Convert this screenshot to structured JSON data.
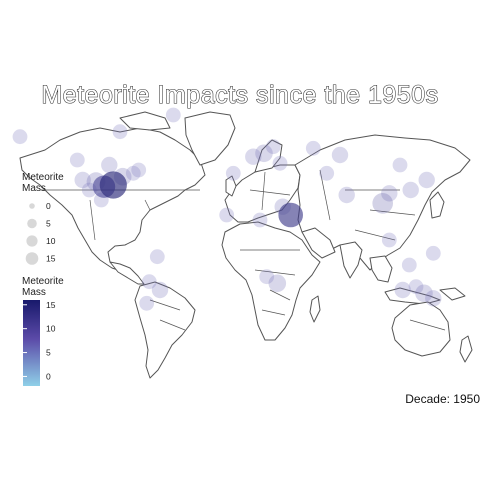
{
  "title": "Meteorite Impacts since the 1950s",
  "caption": "Decade: 1950",
  "colors": {
    "land_fill": "#ffffff",
    "border": "#555555",
    "point_fill": "#8b86c9",
    "point_dark": "#2b2a7a",
    "gradient_high": "#18196b",
    "gradient_mid": "#5b4aa8",
    "gradient_low": "#8fd0e8"
  },
  "size_legend": {
    "title_lines": [
      "Meteorite",
      "Mass"
    ],
    "items": [
      {
        "label": "0",
        "size": 0
      },
      {
        "label": "5",
        "size": 5
      },
      {
        "label": "10",
        "size": 10
      },
      {
        "label": "15",
        "size": 15
      }
    ]
  },
  "color_legend": {
    "title_lines": [
      "Meteorite",
      "Mass"
    ],
    "ticks": [
      {
        "label": "15",
        "value": 15
      },
      {
        "label": "10",
        "value": 10
      },
      {
        "label": "5",
        "value": 5
      },
      {
        "label": "0",
        "value": 0
      }
    ],
    "range": [
      -2,
      16
    ]
  },
  "chart_data": {
    "type": "scatter",
    "title": "Meteorite Impacts since the 1950s",
    "caption": "Decade: 1950",
    "x_label": "",
    "y_label": "",
    "series": [
      {
        "points": [
          {
            "lon": -95,
            "lat": 33,
            "mass": 16
          },
          {
            "lon": -102,
            "lat": 32,
            "mass": 9
          },
          {
            "lon": -108,
            "lat": 35,
            "mass": 5
          },
          {
            "lon": -88,
            "lat": 38,
            "mass": 4
          },
          {
            "lon": -98,
            "lat": 45,
            "mass": 3
          },
          {
            "lon": -118,
            "lat": 36,
            "mass": 3
          },
          {
            "lon": -113,
            "lat": 30,
            "mass": 2
          },
          {
            "lon": -80,
            "lat": 40,
            "mass": 2
          },
          {
            "lon": -122,
            "lat": 48,
            "mass": 2
          },
          {
            "lon": -104,
            "lat": 24,
            "mass": 2
          },
          {
            "lon": -76,
            "lat": 42,
            "mass": 2
          },
          {
            "lon": 38,
            "lat": 15,
            "mass": 12
          },
          {
            "lon": 32,
            "lat": 20,
            "mass": 3
          },
          {
            "lon": 18,
            "lat": 52,
            "mass": 4
          },
          {
            "lon": 10,
            "lat": 50,
            "mass": 3
          },
          {
            "lon": 25,
            "lat": 56,
            "mass": 2
          },
          {
            "lon": 30,
            "lat": 46,
            "mass": 2
          },
          {
            "lon": -5,
            "lat": 40,
            "mass": 2
          },
          {
            "lon": 55,
            "lat": 55,
            "mass": 2
          },
          {
            "lon": 75,
            "lat": 51,
            "mass": 3
          },
          {
            "lon": 65,
            "lat": 40,
            "mass": 2
          },
          {
            "lon": 80,
            "lat": 27,
            "mass": 3
          },
          {
            "lon": 107,
            "lat": 22,
            "mass": 7
          },
          {
            "lon": 112,
            "lat": 28,
            "mass": 3
          },
          {
            "lon": 120,
            "lat": 45,
            "mass": 2
          },
          {
            "lon": 128,
            "lat": 30,
            "mass": 3
          },
          {
            "lon": 140,
            "lat": 36,
            "mass": 3
          },
          {
            "lon": 112,
            "lat": 0,
            "mass": 2
          },
          {
            "lon": 122,
            "lat": -30,
            "mass": 3
          },
          {
            "lon": 132,
            "lat": -28,
            "mass": 2
          },
          {
            "lon": 138,
            "lat": -32,
            "mass": 4
          },
          {
            "lon": 145,
            "lat": -35,
            "mass": 3
          },
          {
            "lon": 127,
            "lat": -15,
            "mass": 2
          },
          {
            "lon": -60,
            "lat": -30,
            "mass": 3
          },
          {
            "lon": -68,
            "lat": -25,
            "mass": 2
          },
          {
            "lon": -62,
            "lat": -10,
            "mass": 2
          },
          {
            "lon": -70,
            "lat": -38,
            "mass": 2
          },
          {
            "lon": 28,
            "lat": -26,
            "mass": 4
          },
          {
            "lon": 20,
            "lat": -22,
            "mass": 2
          },
          {
            "lon": 15,
            "lat": 12,
            "mass": 2
          },
          {
            "lon": -10,
            "lat": 15,
            "mass": 2
          },
          {
            "lon": 145,
            "lat": -8,
            "mass": 2
          },
          {
            "lon": -165,
            "lat": 62,
            "mass": 2
          },
          {
            "lon": -90,
            "lat": 65,
            "mass": 2
          },
          {
            "lon": -50,
            "lat": 75,
            "mass": 2
          }
        ]
      }
    ]
  }
}
